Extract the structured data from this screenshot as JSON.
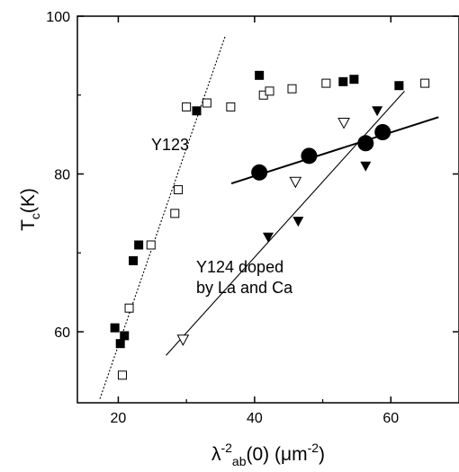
{
  "chart_data": {
    "type": "scatter",
    "xlim": [
      14,
      70
    ],
    "ylim": [
      51,
      100
    ],
    "x_ticks": [
      20,
      40,
      60
    ],
    "y_ticks": [
      60,
      80,
      100
    ],
    "x_tick_labels": [
      "20",
      "40",
      "60"
    ],
    "y_tick_labels": [
      "60",
      "80",
      "100"
    ],
    "xlabel": {
      "base": "λ",
      "sup1": "-2",
      "sub": "ab",
      "mid": "(0) (μm",
      "sup2": "-2",
      "end": ")"
    },
    "ylabel": {
      "base": "T",
      "sub": "c",
      "end": "(K)"
    },
    "grid": false,
    "annotations": [
      {
        "id": "y123",
        "lines": [
          "Y123"
        ]
      },
      {
        "id": "y124",
        "lines": [
          "Y124 doped",
          "by La and Ca"
        ]
      }
    ],
    "series": [
      {
        "marker": "filled-square",
        "points": [
          [
            19.5,
            60.5
          ],
          [
            20.3,
            58.5
          ],
          [
            20.9,
            59.5
          ],
          [
            22.2,
            69
          ],
          [
            23,
            71
          ],
          [
            31.5,
            88
          ],
          [
            40.7,
            92.5
          ],
          [
            53,
            91.7
          ],
          [
            54.6,
            92
          ],
          [
            61.2,
            91.2
          ]
        ]
      },
      {
        "marker": "open-square",
        "points": [
          [
            20.6,
            54.5
          ],
          [
            21.6,
            63
          ],
          [
            24.8,
            71
          ],
          [
            28.3,
            75
          ],
          [
            28.8,
            78
          ],
          [
            30,
            88.5
          ],
          [
            33,
            89
          ],
          [
            36.5,
            88.5
          ],
          [
            41.3,
            90
          ],
          [
            42.2,
            90.5
          ],
          [
            45.5,
            90.8
          ],
          [
            50.5,
            91.5
          ],
          [
            65,
            91.5
          ]
        ]
      },
      {
        "marker": "filled-down-triangle",
        "points": [
          [
            42,
            72
          ],
          [
            46.4,
            74
          ],
          [
            56.3,
            81
          ],
          [
            58,
            88
          ]
        ]
      },
      {
        "marker": "open-down-triangle",
        "points": [
          [
            29.5,
            59
          ],
          [
            46,
            79
          ],
          [
            53.1,
            86.5
          ]
        ]
      },
      {
        "marker": "filled-circle",
        "points": [
          [
            40.7,
            80.2
          ],
          [
            48,
            82.3
          ],
          [
            56.3,
            83.9
          ],
          [
            58.8,
            85.3
          ]
        ]
      }
    ],
    "lines": [
      {
        "style": "dotted",
        "from": [
          17.3,
          51.5
        ],
        "to": [
          35.7,
          97.5
        ]
      },
      {
        "style": "solid-thin",
        "from": [
          27,
          57
        ],
        "to": [
          62,
          90.5
        ]
      },
      {
        "style": "solid-thick",
        "from": [
          36.6,
          78.8
        ],
        "to": [
          67,
          87.2
        ]
      }
    ]
  }
}
